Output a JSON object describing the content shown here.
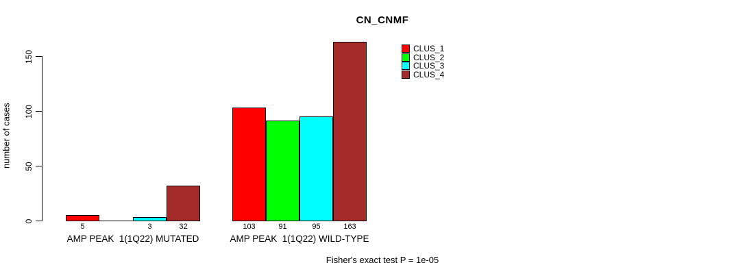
{
  "title": "CN_CNMF",
  "footer_note": "Fisher's exact test P = 1e-05",
  "chart_data": {
    "type": "bar",
    "title": "CN_CNMF",
    "xlabel": "",
    "ylabel": "number of cases",
    "ylim": [
      0,
      170
    ],
    "yticks": [
      0,
      50,
      100,
      150
    ],
    "grid": false,
    "legend_position": "top-right-inside",
    "categories": [
      "AMP PEAK  1(1Q22) MUTATED",
      "AMP PEAK  1(1Q22) WILD-TYPE"
    ],
    "series": [
      {
        "name": "CLUS_1",
        "color": "#FF0000",
        "values": [
          5,
          103
        ]
      },
      {
        "name": "CLUS_2",
        "color": "#00FF00",
        "values": [
          0,
          91
        ]
      },
      {
        "name": "CLUS_3",
        "color": "#00FFFF",
        "values": [
          3,
          95
        ]
      },
      {
        "name": "CLUS_4",
        "color": "#A52A2A",
        "values": [
          32,
          163
        ]
      }
    ],
    "bar_value_labels": [
      [
        "5",
        "",
        "3",
        "32"
      ],
      [
        "103",
        "91",
        "95",
        "163"
      ]
    ],
    "annotation": "Fisher's exact test P = 1e-05"
  }
}
